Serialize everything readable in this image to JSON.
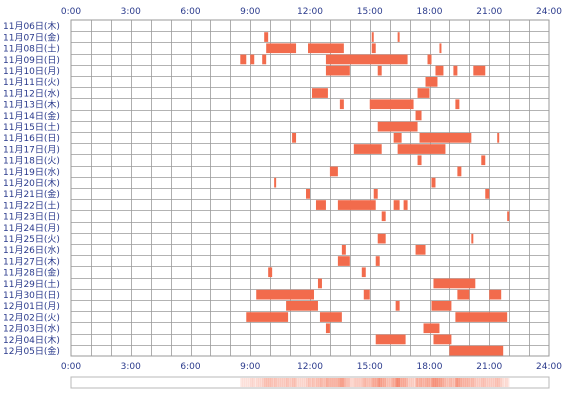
{
  "chart_data": {
    "type": "heatmap",
    "title": "",
    "xlabel": "",
    "ylabel": "",
    "xlim": [
      0,
      24
    ],
    "x_ticks": [
      "0:00",
      "3:00",
      "6:00",
      "9:00",
      "12:00",
      "15:00",
      "18:00",
      "21:00",
      "24:00"
    ],
    "grid": true,
    "bar_color": "#f26b4c",
    "bar_color_light": "#f9b39f",
    "grid_color": "#9a9a9a",
    "label_color": "#2a3a8c",
    "days": [
      {
        "label": "11月06日(木)",
        "intervals": []
      },
      {
        "label": "11月07日(金)",
        "intervals": [
          [
            9.7,
            9.9
          ],
          [
            15.1,
            15.2
          ],
          [
            16.4,
            16.5
          ]
        ]
      },
      {
        "label": "11月08日(土)",
        "intervals": [
          [
            9.8,
            11.3
          ],
          [
            11.9,
            13.7
          ],
          [
            15.1,
            15.3
          ],
          [
            18.5,
            18.6
          ]
        ]
      },
      {
        "label": "11月09日(日)",
        "intervals": [
          [
            8.5,
            8.8
          ],
          [
            9.0,
            9.2
          ],
          [
            9.6,
            9.8
          ],
          [
            12.8,
            16.9
          ],
          [
            17.9,
            18.1
          ]
        ]
      },
      {
        "label": "11月10日(月)",
        "intervals": [
          [
            12.8,
            14.0
          ],
          [
            15.4,
            15.6
          ],
          [
            18.3,
            18.7
          ],
          [
            19.2,
            19.4
          ],
          [
            20.2,
            20.8
          ]
        ]
      },
      {
        "label": "11月11日(火)",
        "intervals": [
          [
            17.8,
            18.4
          ]
        ]
      },
      {
        "label": "11月12日(水)",
        "intervals": [
          [
            12.1,
            12.9
          ],
          [
            17.4,
            18.0
          ]
        ]
      },
      {
        "label": "11月13日(木)",
        "intervals": [
          [
            13.5,
            13.7
          ],
          [
            15.0,
            17.2
          ],
          [
            19.3,
            19.5
          ]
        ]
      },
      {
        "label": "11月14日(金)",
        "intervals": [
          [
            17.3,
            17.6
          ]
        ]
      },
      {
        "label": "11月15日(土)",
        "intervals": [
          [
            15.4,
            17.4
          ]
        ]
      },
      {
        "label": "11月16日(日)",
        "intervals": [
          [
            11.1,
            11.3
          ],
          [
            16.2,
            16.6
          ],
          [
            17.5,
            20.1
          ],
          [
            21.4,
            21.5
          ]
        ]
      },
      {
        "label": "11月17日(月)",
        "intervals": [
          [
            14.2,
            15.6
          ],
          [
            16.4,
            18.8
          ]
        ]
      },
      {
        "label": "11月18日(火)",
        "intervals": [
          [
            17.4,
            17.6
          ],
          [
            20.6,
            20.8
          ]
        ]
      },
      {
        "label": "11月19日(水)",
        "intervals": [
          [
            13.0,
            13.4
          ],
          [
            19.4,
            19.6
          ]
        ]
      },
      {
        "label": "11月20日(木)",
        "intervals": [
          [
            10.2,
            10.3
          ],
          [
            18.1,
            18.3
          ]
        ]
      },
      {
        "label": "11月21日(金)",
        "intervals": [
          [
            11.8,
            12.0
          ],
          [
            15.2,
            15.4
          ],
          [
            20.8,
            21.0
          ]
        ]
      },
      {
        "label": "11月22日(土)",
        "intervals": [
          [
            12.3,
            12.8
          ],
          [
            13.4,
            15.3
          ],
          [
            16.2,
            16.5
          ],
          [
            16.7,
            16.9
          ]
        ]
      },
      {
        "label": "11月23日(日)",
        "intervals": [
          [
            15.6,
            15.8
          ],
          [
            21.9,
            22.0
          ]
        ]
      },
      {
        "label": "11月24日(月)",
        "intervals": []
      },
      {
        "label": "11月25日(火)",
        "intervals": [
          [
            15.4,
            15.8
          ],
          [
            20.1,
            20.2
          ]
        ]
      },
      {
        "label": "11月26日(水)",
        "intervals": [
          [
            13.6,
            13.8
          ],
          [
            17.3,
            17.8
          ]
        ]
      },
      {
        "label": "11月27日(木)",
        "intervals": [
          [
            13.4,
            14.0
          ],
          [
            15.3,
            15.5
          ]
        ]
      },
      {
        "label": "11月28日(金)",
        "intervals": [
          [
            9.9,
            10.1
          ],
          [
            14.6,
            14.8
          ]
        ]
      },
      {
        "label": "11月29日(土)",
        "intervals": [
          [
            12.4,
            12.6
          ],
          [
            18.2,
            20.3
          ]
        ]
      },
      {
        "label": "11月30日(日)",
        "intervals": [
          [
            9.3,
            12.2
          ],
          [
            14.7,
            15.0
          ],
          [
            19.4,
            20.0
          ],
          [
            21.0,
            21.6
          ]
        ]
      },
      {
        "label": "12月01日(月)",
        "intervals": [
          [
            10.8,
            12.4
          ],
          [
            16.3,
            16.5
          ],
          [
            18.1,
            19.1
          ]
        ]
      },
      {
        "label": "12月02日(火)",
        "intervals": [
          [
            8.8,
            10.9
          ],
          [
            12.5,
            13.6
          ],
          [
            19.3,
            21.9
          ]
        ]
      },
      {
        "label": "12月03日(水)",
        "intervals": [
          [
            12.8,
            13.0
          ],
          [
            17.7,
            18.5
          ]
        ]
      },
      {
        "label": "12月04日(木)",
        "intervals": [
          [
            15.3,
            16.8
          ],
          [
            18.2,
            19.1
          ]
        ]
      },
      {
        "label": "12月05日(金)",
        "intervals": [
          [
            19.0,
            21.7
          ]
        ]
      }
    ],
    "summary_strip": {
      "range": [
        8.5,
        22.0
      ]
    }
  }
}
